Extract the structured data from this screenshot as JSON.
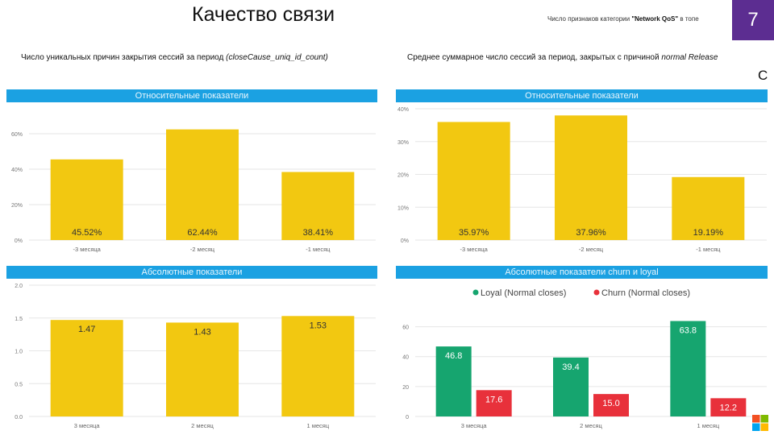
{
  "page": {
    "title": "Качество связи",
    "top_note_prefix": "Число признаков категории ",
    "top_note_bold": "\"Network QoS\"",
    "top_note_suffix": " в топе",
    "page_number": "7",
    "clipped_char": "С"
  },
  "left_caption": {
    "text": "Число уникальных причин закрытия сессий за период ",
    "italic": "(closeCause_uniq_id_count)"
  },
  "right_caption": {
    "text": "Среднее суммарное число сессий за период, закрытых с причиной ",
    "italic": "normal Release"
  },
  "headers": {
    "tl": "Относительные показатели",
    "tr": "Относительные показатели",
    "bl": "Абсолютные показатели",
    "br": "Абсолютные показатели churn и loyal"
  },
  "chart_data": [
    {
      "id": "tl",
      "type": "bar",
      "categories": [
        "-3 месяца",
        "-2 месяц",
        "-1 месяц"
      ],
      "values": [
        45.52,
        62.44,
        38.41
      ],
      "data_labels": [
        "45.52%",
        "62.44%",
        "38.41%"
      ],
      "yticks": [
        "0%",
        "20%",
        "40%",
        "60%"
      ],
      "ylim": [
        0,
        70
      ],
      "ytick_values": [
        0,
        20,
        40,
        60
      ],
      "grid": true,
      "color": "#f2c811"
    },
    {
      "id": "tr",
      "type": "bar",
      "categories": [
        "-3 месяца",
        "-2 месяц",
        "-1 месяц"
      ],
      "values": [
        35.97,
        37.96,
        19.19
      ],
      "data_labels": [
        "35.97%",
        "37.96%",
        "19.19%"
      ],
      "yticks": [
        "0%",
        "10%",
        "20%",
        "30%",
        "40%"
      ],
      "ylim": [
        0,
        40
      ],
      "ytick_values": [
        0,
        10,
        20,
        30,
        40
      ],
      "grid": true,
      "color": "#f2c811"
    },
    {
      "id": "bl",
      "type": "bar",
      "categories": [
        "3 месяца",
        "2 месяц",
        "1 месяц"
      ],
      "values": [
        1.47,
        1.43,
        1.53
      ],
      "data_labels": [
        "1.47",
        "1.43",
        "1.53"
      ],
      "yticks": [
        "0.0",
        "0.5",
        "1.0",
        "1.5",
        "2.0"
      ],
      "ylim": [
        0,
        2
      ],
      "ytick_values": [
        0,
        0.5,
        1.0,
        1.5,
        2.0
      ],
      "grid": true,
      "color": "#f2c811"
    },
    {
      "id": "br",
      "type": "bar",
      "categories": [
        "3 месяца",
        "2 месяц",
        "1 месяц"
      ],
      "legend_position": "top",
      "series": [
        {
          "name": "Loyal (Normal closes)",
          "values": [
            46.8,
            39.4,
            63.8
          ],
          "data_labels": [
            "46.8",
            "39.4",
            "63.8"
          ],
          "color": "#16a56f"
        },
        {
          "name": "Churn (Normal closes)",
          "values": [
            17.6,
            15.0,
            12.2
          ],
          "data_labels": [
            "17.6",
            "15.0",
            "12.2"
          ],
          "color": "#e8313b"
        }
      ],
      "yticks": [
        "0",
        "20",
        "40",
        "60"
      ],
      "ylim": [
        0,
        70
      ],
      "ytick_values": [
        0,
        20,
        40,
        60
      ],
      "grid": true
    }
  ],
  "logo": {
    "name": "windows-logo-icon",
    "colors": [
      "#f25022",
      "#7fba00",
      "#00a4ef",
      "#ffb900"
    ]
  }
}
